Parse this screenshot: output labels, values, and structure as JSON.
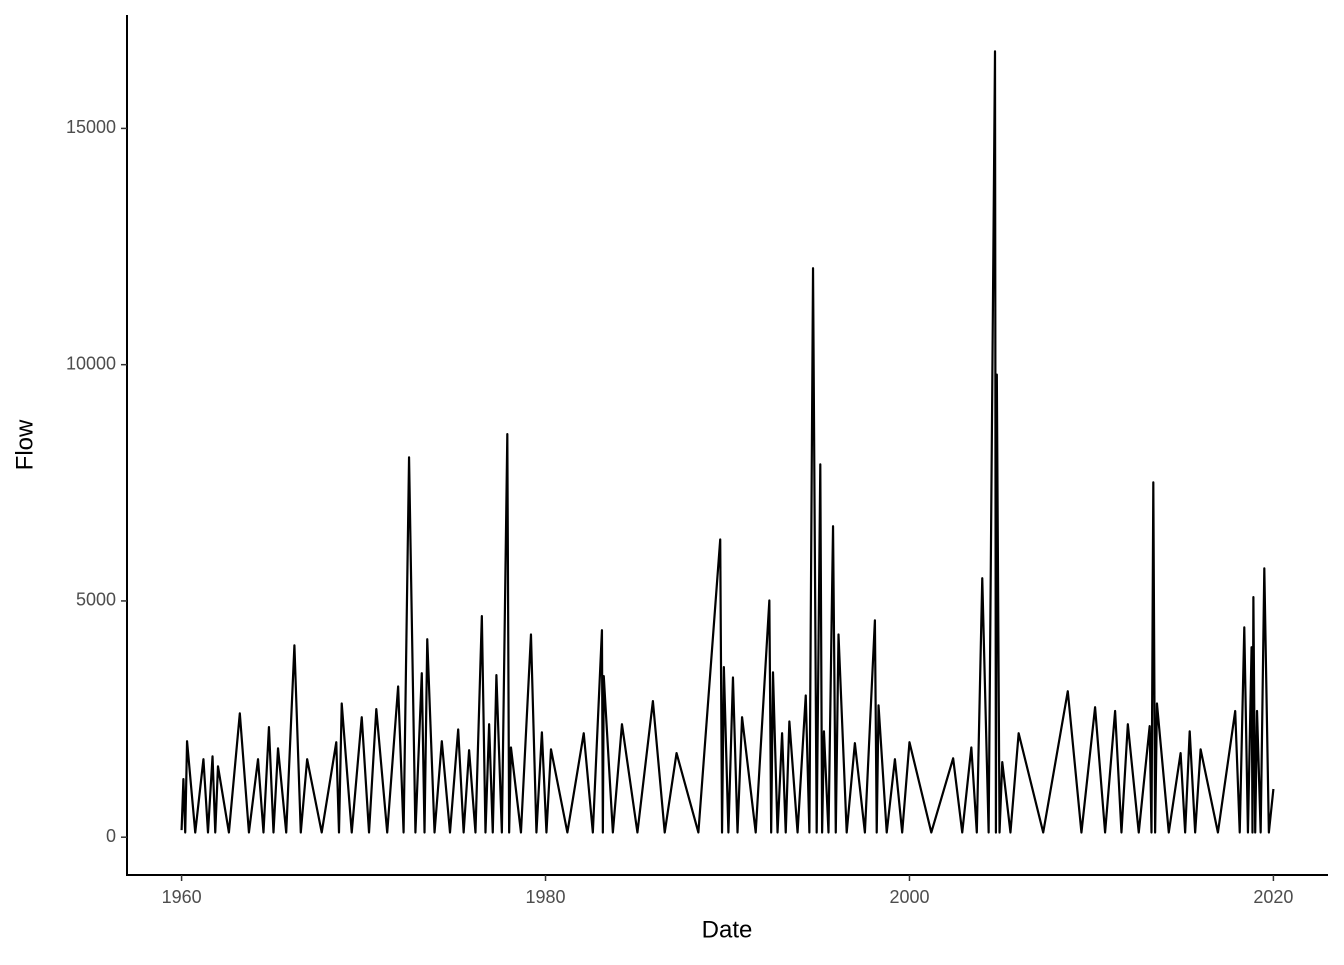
{
  "chart_data": {
    "type": "line",
    "x_label": "Date",
    "y_label": "Flow",
    "color": "#000000",
    "xlim": [
      1957,
      2023
    ],
    "xticks": [
      1960,
      1980,
      2000,
      2020
    ],
    "ylim": [
      -800,
      17400
    ],
    "yticks": [
      0,
      5000,
      10000,
      15000
    ],
    "grid": false,
    "x": [
      1960.0,
      1960.1,
      1960.2,
      1960.3,
      1960.75,
      1961.2,
      1961.45,
      1961.7,
      1961.85,
      1962.0,
      1962.6,
      1963.2,
      1963.7,
      1964.2,
      1964.5,
      1964.8,
      1965.05,
      1965.3,
      1965.75,
      1966.2,
      1966.55,
      1966.9,
      1967.7,
      1968.5,
      1968.65,
      1968.8,
      1969.35,
      1969.9,
      1970.3,
      1970.7,
      1971.3,
      1971.9,
      1972.2,
      1972.5,
      1972.85,
      1973.2,
      1973.35,
      1973.5,
      1973.9,
      1974.3,
      1974.75,
      1975.2,
      1975.5,
      1975.8,
      1976.15,
      1976.5,
      1976.7,
      1976.9,
      1977.1,
      1977.3,
      1977.6,
      1977.9,
      1978.0,
      1978.1,
      1978.65,
      1979.2,
      1979.5,
      1979.8,
      1980.05,
      1980.3,
      1981.2,
      1982.1,
      1982.6,
      1983.1,
      1983.15,
      1983.2,
      1983.7,
      1984.2,
      1985.05,
      1985.9,
      1986.55,
      1987.2,
      1988.4,
      1989.6,
      1989.7,
      1989.8,
      1990.05,
      1990.3,
      1990.55,
      1990.8,
      1991.55,
      1992.3,
      1992.4,
      1992.5,
      1992.75,
      1993.0,
      1993.2,
      1993.4,
      1993.85,
      1994.3,
      1994.5,
      1994.7,
      1994.9,
      1995.1,
      1995.2,
      1995.3,
      1995.55,
      1995.8,
      1995.95,
      1996.1,
      1996.55,
      1997.0,
      1997.55,
      1998.1,
      1998.2,
      1998.3,
      1998.75,
      1999.2,
      1999.6,
      2000.0,
      2001.2,
      2002.4,
      2002.9,
      2003.4,
      2003.7,
      2004.0,
      2004.35,
      2004.7,
      2004.75,
      2004.8,
      2004.95,
      2005.1,
      2005.55,
      2006.0,
      2007.35,
      2008.7,
      2009.45,
      2010.2,
      2010.75,
      2011.3,
      2011.65,
      2012.0,
      2012.6,
      2013.2,
      2013.3,
      2013.4,
      2013.5,
      2013.6,
      2014.25,
      2014.9,
      2015.15,
      2015.4,
      2015.7,
      2016.0,
      2016.95,
      2017.9,
      2018.15,
      2018.4,
      2018.6,
      2018.8,
      2018.85,
      2018.9,
      2019.0,
      2019.1,
      2019.3,
      2019.5,
      2019.75,
      2020.0
    ],
    "values": [
      150,
      1230,
      100,
      2030,
      100,
      1650,
      100,
      1710,
      100,
      1500,
      100,
      2620,
      100,
      1650,
      100,
      2330,
      100,
      1880,
      100,
      4060,
      100,
      1650,
      100,
      2010,
      100,
      2830,
      100,
      2540,
      100,
      2710,
      100,
      3190,
      100,
      8040,
      100,
      3470,
      100,
      4190,
      100,
      2030,
      100,
      2280,
      100,
      1840,
      100,
      4680,
      100,
      2390,
      100,
      3430,
      100,
      8530,
      100,
      1900,
      100,
      4290,
      100,
      2220,
      100,
      1860,
      100,
      2200,
      100,
      4380,
      100,
      3410,
      100,
      2390,
      100,
      2880,
      100,
      1780,
      100,
      6300,
      100,
      3600,
      100,
      3380,
      100,
      2540,
      100,
      5010,
      100,
      3490,
      100,
      2200,
      100,
      2450,
      100,
      3000,
      100,
      12040,
      100,
      7890,
      100,
      2240,
      100,
      6580,
      100,
      4290,
      100,
      1990,
      100,
      4590,
      100,
      2790,
      100,
      1650,
      100,
      2010,
      100,
      1670,
      100,
      1900,
      100,
      5480,
      100,
      16630,
      100,
      9790,
      100,
      1590,
      100,
      2200,
      100,
      3090,
      100,
      2750,
      100,
      2670,
      100,
      2390,
      100,
      2350,
      100,
      7510,
      100,
      2830,
      100,
      1780,
      100,
      2240,
      100,
      1860,
      100,
      2670,
      100,
      4440,
      100,
      4020,
      100,
      5080,
      100,
      2670,
      100,
      5690,
      100,
      1020
    ]
  }
}
